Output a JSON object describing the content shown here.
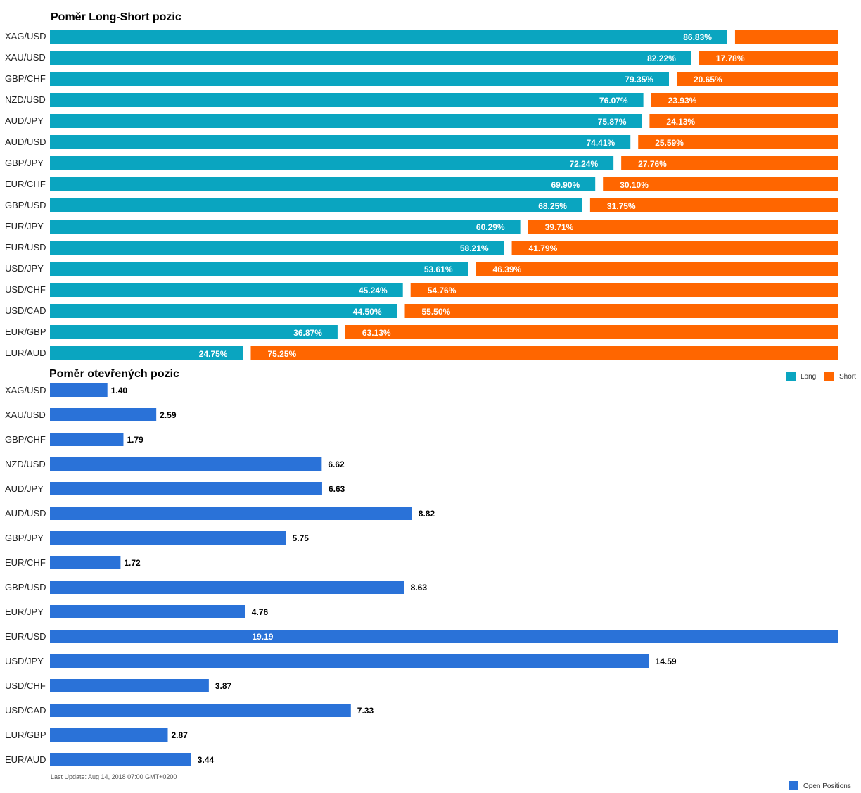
{
  "colors": {
    "long": "#0AA5C0",
    "short": "#FF6600",
    "open_positions": "#2A72D8"
  },
  "legend": {
    "long_label": "Long",
    "short_label": "Short",
    "open_label": "Open Positions"
  },
  "footer": {
    "last_update": "Last Update: Aug 14, 2018 07:00 GMT+0200"
  },
  "chart_data": [
    {
      "type": "bar",
      "orientation": "horizontal",
      "stacked": true,
      "title": "Poměr Long-Short pozic",
      "categories": [
        "XAG/USD",
        "XAU/USD",
        "GBP/CHF",
        "NZD/USD",
        "AUD/JPY",
        "AUD/USD",
        "GBP/JPY",
        "EUR/CHF",
        "GBP/USD",
        "EUR/JPY",
        "EUR/USD",
        "USD/JPY",
        "USD/CHF",
        "USD/CAD",
        "EUR/GBP",
        "EUR/AUD"
      ],
      "series": [
        {
          "name": "Long",
          "values": [
            86.83,
            82.22,
            79.35,
            76.07,
            75.87,
            74.41,
            72.24,
            69.9,
            68.25,
            60.29,
            58.21,
            53.61,
            45.24,
            44.5,
            36.87,
            24.75
          ],
          "labels": [
            "86.83%",
            "82.22%",
            "79.35%",
            "76.07%",
            "75.87%",
            "74.41%",
            "72.24%",
            "69.90%",
            "68.25%",
            "60.29%",
            "58.21%",
            "53.61%",
            "45.24%",
            "44.50%",
            "36.87%",
            "24.75%"
          ]
        },
        {
          "name": "Short",
          "values": [
            13.17,
            17.78,
            20.65,
            23.93,
            24.13,
            25.59,
            27.76,
            30.1,
            31.75,
            39.71,
            41.79,
            46.39,
            54.76,
            55.5,
            63.13,
            75.25
          ],
          "labels": [
            "",
            "17.78%",
            "20.65%",
            "23.93%",
            "24.13%",
            "25.59%",
            "27.76%",
            "30.10%",
            "31.75%",
            "39.71%",
            "41.79%",
            "46.39%",
            "54.76%",
            "55.50%",
            "63.13%",
            "75.25%"
          ]
        }
      ],
      "xlim": [
        0,
        100
      ],
      "grid": false,
      "legend_position": "bottom-right"
    },
    {
      "type": "bar",
      "orientation": "horizontal",
      "title": "Poměr otevřených pozic",
      "categories": [
        "XAG/USD",
        "XAU/USD",
        "GBP/CHF",
        "NZD/USD",
        "AUD/JPY",
        "AUD/USD",
        "GBP/JPY",
        "EUR/CHF",
        "GBP/USD",
        "EUR/JPY",
        "EUR/USD",
        "USD/JPY",
        "USD/CHF",
        "USD/CAD",
        "EUR/GBP",
        "EUR/AUD"
      ],
      "series": [
        {
          "name": "Open Positions",
          "values": [
            1.4,
            2.59,
            1.79,
            6.62,
            6.63,
            8.82,
            5.75,
            1.72,
            8.63,
            4.76,
            19.19,
            14.59,
            3.87,
            7.33,
            2.87,
            3.44
          ],
          "labels": [
            "1.40",
            "2.59",
            "1.79",
            "6.62",
            "6.63",
            "8.82",
            "5.75",
            "1.72",
            "8.63",
            "4.76",
            "19.19",
            "14.59",
            "3.87",
            "7.33",
            "2.87",
            "3.44"
          ]
        }
      ],
      "xlim": [
        0,
        19.19
      ],
      "grid": false,
      "legend_position": "bottom-right"
    }
  ]
}
